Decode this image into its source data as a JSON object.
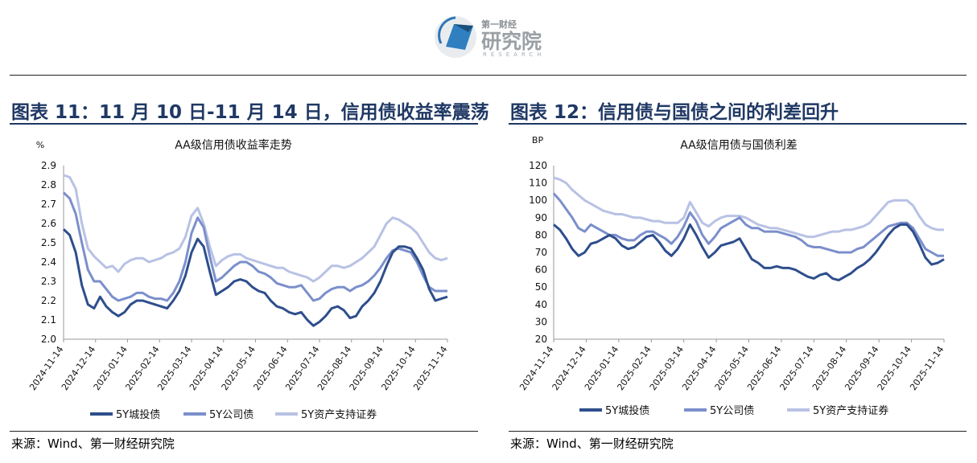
{
  "header": {
    "logo_small": "第一财经",
    "logo_main": "研究院",
    "logo_sub": "RESEARCH"
  },
  "panels": [
    {
      "title": "图表 11：11 月 10 日-11 月 14 日，信用债收益率震荡",
      "source": "来源：Wind、第一财经研究院"
    },
    {
      "title": "图表 12：信用债与国债之间的利差回升",
      "source": "来源：Wind、第一财经研究院"
    }
  ],
  "chart_data": [
    {
      "type": "line",
      "title": "AA级信用债收益率走势",
      "ylabel": "%",
      "ylim": [
        2.0,
        2.9
      ],
      "yticks": [
        "2.0",
        "2.1",
        "2.2",
        "2.3",
        "2.4",
        "2.5",
        "2.6",
        "2.7",
        "2.8",
        "2.9"
      ],
      "x_tick_labels": [
        "2024-11-14",
        "2024-12-14",
        "2025-01-14",
        "2025-02-14",
        "2025-03-14",
        "2025-04-14",
        "2025-05-14",
        "2025-06-14",
        "2025-07-14",
        "2025-08-14",
        "2025-09-14",
        "2025-10-14",
        "2025-11-14"
      ],
      "series_colors": [
        "#2e4e8c",
        "#7b8fcb",
        "#b8c2e4"
      ],
      "legend_position": "bottom",
      "series": [
        {
          "name": "5Y城投债",
          "values": [
            2.57,
            2.54,
            2.45,
            2.28,
            2.18,
            2.16,
            2.22,
            2.17,
            2.14,
            2.12,
            2.14,
            2.18,
            2.2,
            2.2,
            2.19,
            2.18,
            2.17,
            2.16,
            2.2,
            2.25,
            2.33,
            2.45,
            2.52,
            2.48,
            2.35,
            2.23,
            2.25,
            2.27,
            2.3,
            2.31,
            2.3,
            2.27,
            2.25,
            2.24,
            2.2,
            2.17,
            2.16,
            2.14,
            2.13,
            2.14,
            2.1,
            2.07,
            2.09,
            2.12,
            2.16,
            2.17,
            2.15,
            2.11,
            2.12,
            2.17,
            2.2,
            2.24,
            2.3,
            2.38,
            2.45,
            2.48,
            2.48,
            2.47,
            2.42,
            2.36,
            2.26,
            2.2,
            2.21,
            2.22
          ]
        },
        {
          "name": "5Y公司债",
          "values": [
            2.76,
            2.73,
            2.65,
            2.5,
            2.36,
            2.3,
            2.3,
            2.26,
            2.22,
            2.2,
            2.21,
            2.22,
            2.24,
            2.24,
            2.22,
            2.21,
            2.21,
            2.2,
            2.24,
            2.3,
            2.4,
            2.55,
            2.63,
            2.58,
            2.43,
            2.3,
            2.32,
            2.35,
            2.38,
            2.4,
            2.4,
            2.38,
            2.35,
            2.34,
            2.32,
            2.29,
            2.28,
            2.27,
            2.27,
            2.28,
            2.24,
            2.2,
            2.21,
            2.24,
            2.26,
            2.27,
            2.27,
            2.25,
            2.27,
            2.28,
            2.3,
            2.33,
            2.37,
            2.42,
            2.46,
            2.47,
            2.46,
            2.45,
            2.4,
            2.33,
            2.27,
            2.25,
            2.25,
            2.25
          ]
        },
        {
          "name": "5Y资产支持证券",
          "values": [
            2.85,
            2.84,
            2.78,
            2.6,
            2.47,
            2.43,
            2.4,
            2.37,
            2.38,
            2.35,
            2.39,
            2.41,
            2.42,
            2.42,
            2.4,
            2.41,
            2.42,
            2.44,
            2.45,
            2.47,
            2.53,
            2.64,
            2.68,
            2.6,
            2.48,
            2.38,
            2.41,
            2.43,
            2.44,
            2.44,
            2.42,
            2.41,
            2.4,
            2.39,
            2.38,
            2.37,
            2.37,
            2.35,
            2.34,
            2.33,
            2.32,
            2.3,
            2.32,
            2.35,
            2.38,
            2.38,
            2.37,
            2.38,
            2.4,
            2.42,
            2.45,
            2.48,
            2.54,
            2.6,
            2.63,
            2.62,
            2.6,
            2.58,
            2.55,
            2.5,
            2.45,
            2.42,
            2.41,
            2.42
          ]
        }
      ]
    },
    {
      "type": "line",
      "title": "AA级信用债与国债利差",
      "ylabel": "BP",
      "ylim": [
        20,
        120
      ],
      "yticks": [
        "20",
        "30",
        "40",
        "50",
        "60",
        "70",
        "80",
        "90",
        "100",
        "110",
        "120"
      ],
      "x_tick_labels": [
        "2024-11-14",
        "2024-12-14",
        "2025-01-14",
        "2025-02-14",
        "2025-03-14",
        "2025-04-14",
        "2025-05-14",
        "2025-06-14",
        "2025-07-14",
        "2025-08-14",
        "2025-09-14",
        "2025-10-14",
        "2025-11-14"
      ],
      "series_colors": [
        "#2e4e8c",
        "#7b8fcb",
        "#b8c2e4"
      ],
      "legend_position": "bottom",
      "series": [
        {
          "name": "5Y城投债",
          "values": [
            86,
            83,
            78,
            72,
            68,
            70,
            75,
            76,
            78,
            80,
            78,
            74,
            72,
            73,
            76,
            79,
            80,
            76,
            71,
            68,
            72,
            78,
            86,
            80,
            73,
            67,
            70,
            74,
            75,
            76,
            78,
            72,
            66,
            64,
            61,
            61,
            62,
            61,
            61,
            60,
            58,
            56,
            55,
            57,
            58,
            55,
            54,
            56,
            58,
            61,
            63,
            66,
            70,
            75,
            80,
            84,
            86,
            86,
            82,
            75,
            67,
            63,
            64,
            66
          ]
        },
        {
          "name": "5Y公司债",
          "values": [
            104,
            100,
            95,
            90,
            84,
            82,
            86,
            84,
            82,
            80,
            80,
            78,
            77,
            77,
            80,
            82,
            82,
            80,
            78,
            75,
            79,
            85,
            93,
            88,
            80,
            75,
            79,
            84,
            86,
            88,
            90,
            86,
            84,
            84,
            82,
            82,
            82,
            81,
            80,
            79,
            77,
            74,
            73,
            73,
            72,
            71,
            70,
            70,
            70,
            72,
            73,
            76,
            79,
            82,
            85,
            86,
            87,
            87,
            84,
            78,
            72,
            70,
            68,
            68
          ]
        },
        {
          "name": "5Y资产支持证券",
          "values": [
            113,
            112,
            110,
            106,
            103,
            100,
            98,
            96,
            94,
            93,
            92,
            92,
            91,
            90,
            90,
            89,
            88,
            88,
            87,
            87,
            87,
            90,
            99,
            93,
            87,
            85,
            88,
            90,
            91,
            91,
            91,
            90,
            88,
            86,
            85,
            84,
            84,
            83,
            82,
            81,
            80,
            79,
            79,
            80,
            81,
            82,
            82,
            83,
            83,
            84,
            85,
            87,
            91,
            95,
            99,
            100,
            100,
            100,
            97,
            91,
            86,
            84,
            83,
            83
          ]
        }
      ]
    }
  ]
}
